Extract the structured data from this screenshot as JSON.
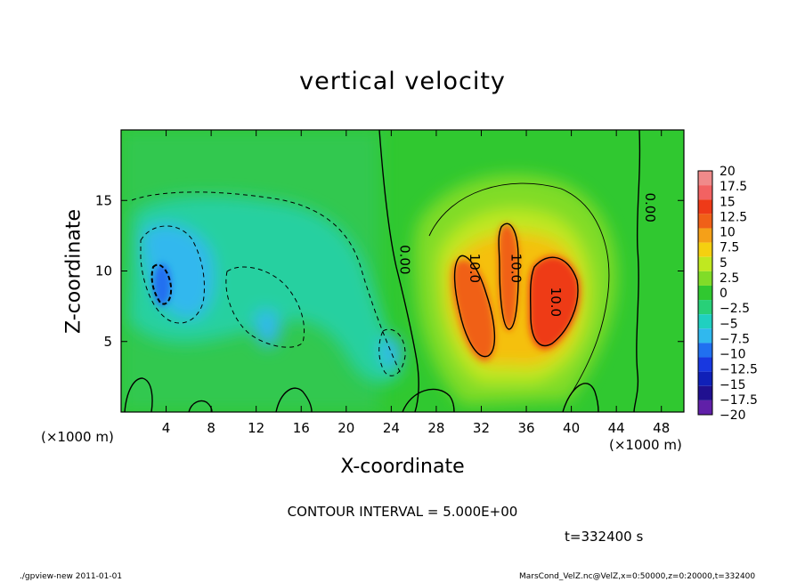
{
  "chart_data": {
    "type": "heatmap",
    "title": "vertical velocity",
    "xlabel": "X-coordinate",
    "ylabel": "Z-coordinate",
    "x_unit": "(×1000 m)",
    "xlim": [
      0,
      50
    ],
    "ylim": [
      0,
      20
    ],
    "x_ticks": [
      4,
      8,
      12,
      16,
      20,
      24,
      28,
      32,
      36,
      40,
      44,
      48
    ],
    "y_ticks": [
      5,
      10,
      15
    ],
    "colorbar": {
      "levels": [
        20,
        17.5,
        15,
        12.5,
        10,
        7.5,
        5,
        2.5,
        0,
        -2.5,
        -5,
        -7.5,
        -10,
        -12.5,
        -15,
        -17.5,
        -20
      ],
      "labels": [
        "20",
        "17.5",
        "15",
        "12.5",
        "10",
        "7.5",
        "5",
        "2.5",
        "0",
        "−2.5",
        "−5",
        "−7.5",
        "−10",
        "−12.5",
        "−15",
        "−17.5",
        "−20"
      ],
      "colors": [
        "#f08a8a",
        "#f26262",
        "#ee3a18",
        "#f06018",
        "#f5a018",
        "#f5d010",
        "#c0e820",
        "#80dc28",
        "#30c830",
        "#28d078",
        "#20d0c0",
        "#30b8ee",
        "#2070f0",
        "#1838e0",
        "#1020b8",
        "#201090",
        "#6020a8"
      ]
    },
    "contour_labels": [
      {
        "text": "0.00",
        "x": 24.8,
        "z": 10.8
      },
      {
        "text": "0.00",
        "x": 46.6,
        "z": 14.5
      },
      {
        "text": "10.0",
        "x": 31.0,
        "z": 10.2
      },
      {
        "text": "10.0",
        "x": 34.7,
        "z": 10.2
      },
      {
        "text": "10.0",
        "x": 38.2,
        "z": 7.8
      }
    ],
    "annotations": {
      "contour_interval": "CONTOUR INTERVAL = 5.000E+00",
      "time": "t=332400 s"
    }
  },
  "footer": {
    "left": "./gpview-new   2011-01-01",
    "right": "MarsCond_VelZ.nc@VelZ,x=0:50000,z=0:20000,t=332400"
  }
}
